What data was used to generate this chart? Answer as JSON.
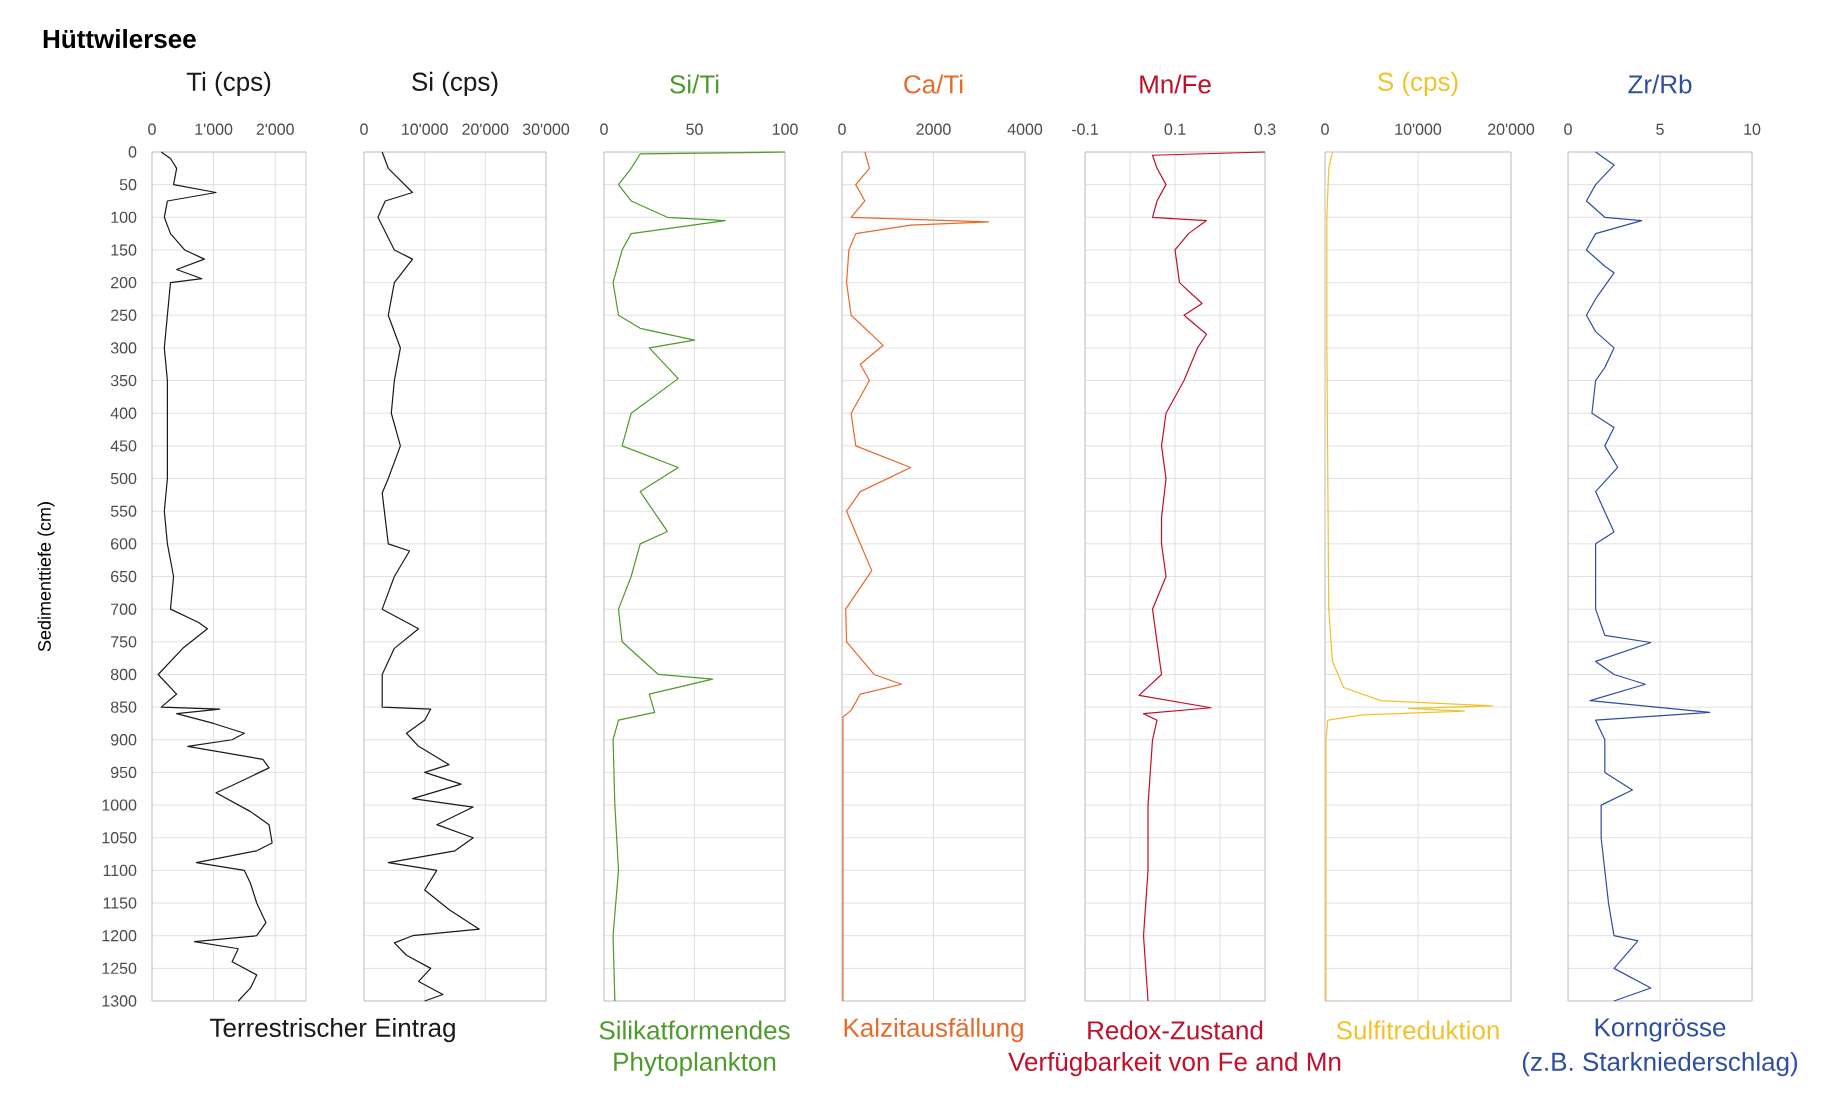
{
  "chart_data": [
    {
      "type": "line",
      "orientation": "horizontal",
      "title": "Hüttwilersee",
      "xlabel": "Ti (cps)",
      "ylabel": "Sedimenttiefe (cm)",
      "color": "#1a1a1a",
      "grid": true,
      "annotations": [
        "Terrestrischer Eintrag"
      ],
      "x": [
        0,
        10,
        25,
        50,
        62,
        75,
        100,
        125,
        150,
        164,
        180,
        194,
        200,
        250,
        300,
        350,
        400,
        450,
        500,
        550,
        600,
        650,
        700,
        720,
        730,
        760,
        800,
        830,
        850,
        853,
        860,
        875,
        890,
        900,
        910,
        930,
        943,
        970,
        981,
        1010,
        1030,
        1058,
        1070,
        1088,
        1100,
        1120,
        1150,
        1180,
        1200,
        1209,
        1220,
        1240,
        1260,
        1280,
        1300
      ],
      "values": [
        150,
        300,
        400,
        350,
        1040,
        250,
        200,
        300,
        530,
        850,
        400,
        810,
        300,
        250,
        200,
        250,
        250,
        250,
        250,
        200,
        250,
        350,
        300,
        750,
        900,
        500,
        100,
        400,
        150,
        1100,
        400,
        1000,
        1500,
        1300,
        580,
        1800,
        1900,
        1300,
        1040,
        1600,
        1900,
        1950,
        1700,
        720,
        1500,
        1600,
        1700,
        1850,
        1700,
        690,
        1400,
        1300,
        1700,
        1600,
        1400
      ],
      "xlim": [
        0,
        2500
      ],
      "xticks": [
        0,
        {
          "value": 1000,
          "label": "1'000"
        },
        {
          "value": 2000,
          "label": "2'000"
        }
      ],
      "ylim": [
        1300,
        0
      ],
      "yticks": [
        0,
        50,
        100,
        150,
        200,
        250,
        300,
        350,
        400,
        450,
        500,
        550,
        600,
        650,
        700,
        750,
        800,
        850,
        900,
        950,
        1000,
        1050,
        1100,
        1150,
        1200,
        1250,
        1300
      ]
    },
    {
      "type": "line",
      "orientation": "horizontal",
      "xlabel": "Si (cps)",
      "color": "#1a1a1a",
      "grid": true,
      "tick_labels": "x",
      "x": [
        0,
        25,
        62,
        75,
        100,
        150,
        164,
        200,
        250,
        300,
        350,
        400,
        450,
        500,
        522,
        600,
        611,
        650,
        700,
        730,
        760,
        800,
        850,
        853,
        870,
        890,
        910,
        938,
        950,
        968,
        990,
        1003,
        1030,
        1050,
        1070,
        1088,
        1100,
        1130,
        1160,
        1190,
        1200,
        1211,
        1230,
        1250,
        1270,
        1290,
        1300
      ],
      "values": [
        3000,
        4000,
        8000,
        3500,
        2300,
        5000,
        8000,
        5000,
        4000,
        6000,
        5000,
        4500,
        6000,
        4000,
        3000,
        4000,
        7500,
        5000,
        3000,
        9000,
        5000,
        3000,
        3000,
        11000,
        10000,
        7000,
        9000,
        14000,
        10000,
        16000,
        8000,
        18000,
        12000,
        18000,
        15000,
        4000,
        12000,
        10000,
        14000,
        19000,
        8000,
        5000,
        7000,
        11000,
        9000,
        13000,
        10000
      ],
      "xlim": [
        0,
        30000
      ],
      "xticks": [
        0,
        {
          "value": 10000,
          "label": "10'000"
        },
        {
          "value": 20000,
          "label": "20'000"
        },
        {
          "value": 30000,
          "label": "30'000"
        }
      ],
      "ylim": [
        1300,
        0
      ],
      "yticks": [
        0,
        50,
        100,
        150,
        200,
        250,
        300,
        350,
        400,
        450,
        500,
        550,
        600,
        650,
        700,
        750,
        800,
        850,
        900,
        950,
        1000,
        1050,
        1100,
        1150,
        1200,
        1250,
        1300
      ]
    },
    {
      "type": "line",
      "orientation": "horizontal",
      "xlabel": "Si/Ti",
      "color": "#4e9a2a",
      "grid": true,
      "tick_labels": "x",
      "annotations": [
        "Silikatformendes",
        "Phytoplankton"
      ],
      "x": [
        0,
        3,
        25,
        50,
        75,
        100,
        105,
        125,
        150,
        200,
        250,
        270,
        288,
        300,
        347,
        400,
        450,
        483,
        520,
        581,
        600,
        650,
        700,
        750,
        800,
        807,
        830,
        858,
        870,
        900,
        1000,
        1100,
        1200,
        1300
      ],
      "values": [
        100,
        20,
        15,
        8,
        15,
        35,
        67,
        15,
        10,
        5,
        8,
        20,
        50,
        25,
        41,
        15,
        10,
        41,
        20,
        35,
        20,
        15,
        8,
        10,
        30,
        60,
        25,
        28,
        8,
        5,
        6,
        8,
        5,
        6
      ],
      "xlim": [
        0,
        100
      ],
      "xticks": [
        0,
        50,
        100
      ],
      "ylim": [
        1300,
        0
      ],
      "yticks": [
        0,
        50,
        100,
        150,
        200,
        250,
        300,
        350,
        400,
        450,
        500,
        550,
        600,
        650,
        700,
        750,
        800,
        850,
        900,
        950,
        1000,
        1050,
        1100,
        1150,
        1200,
        1250,
        1300
      ]
    },
    {
      "type": "line",
      "orientation": "horizontal",
      "xlabel": "Ca/Ti",
      "color": "#e8692a",
      "grid": true,
      "tick_labels": "x",
      "annotations": [
        "Kalzitausfällung"
      ],
      "x": [
        0,
        25,
        50,
        75,
        100,
        107,
        112,
        125,
        150,
        200,
        250,
        296,
        325,
        350,
        400,
        450,
        483,
        520,
        550,
        600,
        641,
        700,
        750,
        800,
        815,
        830,
        855,
        865,
        1300
      ],
      "values": [
        500,
        600,
        300,
        500,
        200,
        3200,
        1500,
        300,
        150,
        100,
        200,
        900,
        400,
        600,
        200,
        300,
        1500,
        400,
        100,
        400,
        650,
        80,
        100,
        700,
        1300,
        400,
        200,
        20,
        20
      ],
      "xlim": [
        0,
        4000
      ],
      "xticks": [
        0,
        2000,
        4000
      ],
      "ylim": [
        1300,
        0
      ],
      "yticks": [
        0,
        50,
        100,
        150,
        200,
        250,
        300,
        350,
        400,
        450,
        500,
        550,
        600,
        650,
        700,
        750,
        800,
        850,
        900,
        950,
        1000,
        1050,
        1100,
        1150,
        1200,
        1250,
        1300
      ]
    },
    {
      "type": "line",
      "orientation": "horizontal",
      "xlabel": "Mn/Fe",
      "color": "#c0102a",
      "grid": true,
      "tick_labels": "x",
      "annotations": [
        "Redox-Zustand",
        "Verfügbarkeit von Fe and Mn"
      ],
      "x": [
        0,
        5,
        25,
        50,
        75,
        100,
        105,
        125,
        150,
        200,
        232,
        250,
        279,
        300,
        350,
        400,
        450,
        500,
        560,
        600,
        650,
        700,
        750,
        800,
        832,
        851,
        860,
        870,
        900,
        1000,
        1100,
        1200,
        1300
      ],
      "values": [
        0.3,
        0.05,
        0.06,
        0.08,
        0.06,
        0.05,
        0.17,
        0.13,
        0.1,
        0.11,
        0.16,
        0.12,
        0.17,
        0.15,
        0.12,
        0.08,
        0.07,
        0.08,
        0.07,
        0.07,
        0.08,
        0.05,
        0.06,
        0.07,
        0.02,
        0.18,
        0.03,
        0.06,
        0.05,
        0.04,
        0.04,
        0.03,
        0.04
      ],
      "xlim": [
        -0.1,
        0.3
      ],
      "xticks": [
        -0.1,
        {
          "value": 0,
          "label": null
        },
        0.1,
        {
          "value": 0.2,
          "label": null
        },
        0.3
      ],
      "ylim": [
        1300,
        0
      ],
      "yticks": [
        0,
        50,
        100,
        150,
        200,
        250,
        300,
        350,
        400,
        450,
        500,
        550,
        600,
        650,
        700,
        750,
        800,
        850,
        900,
        950,
        1000,
        1050,
        1100,
        1150,
        1200,
        1250,
        1300
      ]
    },
    {
      "type": "line",
      "orientation": "horizontal",
      "xlabel": "S (cps)",
      "color": "#f2c22a",
      "grid": true,
      "tick_labels": "x",
      "annotations": [
        "Sulfitreduktion"
      ],
      "x": [
        0,
        25,
        100,
        300,
        500,
        700,
        780,
        820,
        840,
        848,
        852,
        856,
        862,
        870,
        900,
        1300
      ],
      "values": [
        800,
        400,
        200,
        200,
        300,
        400,
        800,
        2000,
        6000,
        18000,
        9000,
        15000,
        4000,
        300,
        100,
        100
      ],
      "xlim": [
        0,
        20000
      ],
      "xticks": [
        0,
        {
          "value": 10000,
          "label": "10'000"
        },
        {
          "value": 20000,
          "label": "20'000"
        }
      ],
      "ylim": [
        1300,
        0
      ],
      "yticks": [
        0,
        50,
        100,
        150,
        200,
        250,
        300,
        350,
        400,
        450,
        500,
        550,
        600,
        650,
        700,
        750,
        800,
        850,
        900,
        950,
        1000,
        1050,
        1100,
        1150,
        1200,
        1250,
        1300
      ]
    },
    {
      "type": "line",
      "orientation": "horizontal",
      "xlabel": "Zr/Rb",
      "color": "#2e4fa0",
      "grid": true,
      "tick_labels": "x",
      "annotations": [
        "Korngrösse",
        "(z.B. Starkniederschlag)"
      ],
      "x": [
        0,
        20,
        50,
        75,
        100,
        105,
        125,
        150,
        175,
        185,
        225,
        250,
        275,
        300,
        330,
        350,
        400,
        422,
        450,
        483,
        520,
        582,
        600,
        700,
        740,
        751,
        780,
        800,
        815,
        840,
        858,
        870,
        900,
        950,
        977,
        1000,
        1050,
        1100,
        1150,
        1200,
        1208,
        1250,
        1280,
        1300
      ],
      "values": [
        1.5,
        2.5,
        1.5,
        1.0,
        2.0,
        4.0,
        1.5,
        1.0,
        2.0,
        2.5,
        1.5,
        1.0,
        1.5,
        2.5,
        2.0,
        1.5,
        1.3,
        2.5,
        2.0,
        2.7,
        1.5,
        2.5,
        1.5,
        1.5,
        2.0,
        4.5,
        1.5,
        2.5,
        4.2,
        1.2,
        7.7,
        1.5,
        2.0,
        2.0,
        3.5,
        1.8,
        1.8,
        2.0,
        2.2,
        2.5,
        3.8,
        2.5,
        4.5,
        2.5
      ],
      "xlim": [
        0,
        10
      ],
      "xticks": [
        0,
        5,
        10
      ],
      "ylim": [
        1300,
        0
      ],
      "yticks": [
        0,
        50,
        100,
        150,
        200,
        250,
        300,
        350,
        400,
        450,
        500,
        550,
        600,
        650,
        700,
        750,
        800,
        850,
        900,
        950,
        1000,
        1050,
        1100,
        1150,
        1200,
        1250,
        1300
      ]
    }
  ]
}
